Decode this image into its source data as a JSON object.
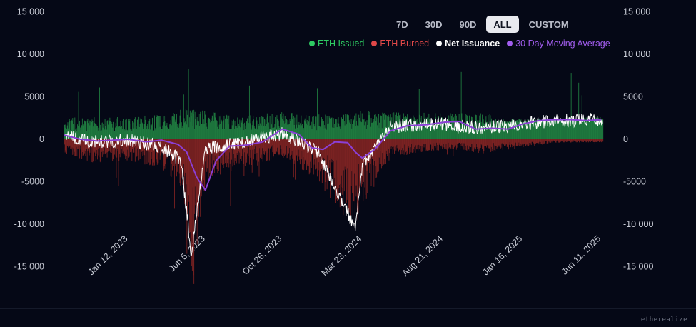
{
  "range_selector": {
    "options": [
      "7D",
      "30D",
      "90D",
      "ALL",
      "CUSTOM"
    ],
    "selected": "ALL"
  },
  "colors": {
    "background": "#050816",
    "issued": "#1f7a3f",
    "issued_legend": "#2ecc63",
    "burned": "#7a2222",
    "burned_legend": "#e04848",
    "net": "#ffffff",
    "moving_average": "#8b3fd6",
    "axis_text": "#c9ccd6"
  },
  "legend": [
    {
      "label": "ETH Issued",
      "color": "#2ecc63"
    },
    {
      "label": "ETH Burned",
      "color": "#e04848"
    },
    {
      "label": "Net Issuance",
      "color": "#ffffff"
    },
    {
      "label": "30 Day Moving Average",
      "color": "#a35ef0"
    }
  ],
  "watermark": "etherealize",
  "chart_data": {
    "type": "bar",
    "x_range": [
      "2022-09-15",
      "2025-06-15"
    ],
    "x_ticks": [
      "Jan 12, 2023",
      "Jun 5, 2023",
      "Oct 26, 2023",
      "Mar 23, 2024",
      "Aug 21, 2024",
      "Jan 16, 2025",
      "Jun 11, 2025"
    ],
    "y_ticks": [
      15000,
      10000,
      5000,
      0,
      -5000,
      -10000,
      -15000
    ],
    "y_tick_labels": [
      "15 000",
      "10 000",
      "5000",
      "0",
      "-5000",
      "-10 000",
      "-15 000"
    ],
    "ylim": [
      -15000,
      15000
    ],
    "grid": false,
    "legend_position": "top-right",
    "series": [
      {
        "name": "ETH Issued",
        "type": "bar",
        "x": [
          "2022-09-15",
          "2022-11-01",
          "2023-01-12",
          "2023-03-15",
          "2023-04-20",
          "2023-06-05",
          "2023-08-01",
          "2023-10-26",
          "2024-01-01",
          "2024-03-23",
          "2024-05-15",
          "2024-08-21",
          "2024-11-01",
          "2025-01-16",
          "2025-03-15",
          "2025-06-11"
        ],
        "values": [
          1800,
          1900,
          1900,
          2100,
          2600,
          2400,
          2000,
          2300,
          2100,
          2400,
          2300,
          2200,
          2200,
          2300,
          2400,
          2500
        ]
      },
      {
        "name": "ETH Burned",
        "type": "bar",
        "x": [
          "2022-09-15",
          "2022-11-01",
          "2023-01-12",
          "2023-03-15",
          "2023-04-20",
          "2023-05-10",
          "2023-06-05",
          "2023-08-01",
          "2023-10-26",
          "2024-01-01",
          "2024-03-10",
          "2024-03-23",
          "2024-05-15",
          "2024-08-21",
          "2024-11-01",
          "2025-01-16",
          "2025-03-15",
          "2025-06-11"
        ],
        "values": [
          -1200,
          -2000,
          -1800,
          -2500,
          -4000,
          -14500,
          -3500,
          -2500,
          -1500,
          -3500,
          -8000,
          -6000,
          -1500,
          -900,
          -1200,
          -700,
          -300,
          -250
        ]
      },
      {
        "name": "Net Issuance",
        "type": "line",
        "x": [
          "2022-09-15",
          "2022-11-01",
          "2023-01-12",
          "2023-03-15",
          "2023-04-20",
          "2023-05-10",
          "2023-06-05",
          "2023-08-01",
          "2023-10-26",
          "2024-01-01",
          "2024-03-10",
          "2024-03-23",
          "2024-05-15",
          "2024-08-21",
          "2024-11-01",
          "2025-01-16",
          "2025-03-15",
          "2025-06-11"
        ],
        "values": [
          600,
          -300,
          -100,
          -800,
          -2500,
          -13500,
          -1000,
          -500,
          700,
          -1500,
          -10500,
          -3000,
          1500,
          1800,
          1300,
          1800,
          2200,
          2300
        ]
      },
      {
        "name": "30 Day Moving Average",
        "type": "line",
        "x": [
          "2022-09-15",
          "2022-10-15",
          "2022-11-15",
          "2022-12-15",
          "2023-01-12",
          "2023-02-15",
          "2023-03-15",
          "2023-04-15",
          "2023-05-01",
          "2023-05-20",
          "2023-06-05",
          "2023-06-25",
          "2023-07-20",
          "2023-08-20",
          "2023-09-20",
          "2023-10-26",
          "2023-11-26",
          "2023-12-20",
          "2024-01-10",
          "2024-02-01",
          "2024-02-25",
          "2024-03-10",
          "2024-03-23",
          "2024-04-15",
          "2024-05-15",
          "2024-06-15",
          "2024-07-20",
          "2024-08-21",
          "2024-09-20",
          "2024-10-20",
          "2024-11-20",
          "2024-12-20",
          "2025-01-16",
          "2025-02-15",
          "2025-03-15",
          "2025-04-15",
          "2025-05-15",
          "2025-06-11"
        ],
        "values": [
          500,
          0,
          -200,
          -100,
          0,
          -300,
          -100,
          -600,
          -1500,
          -4500,
          -6000,
          -2500,
          -800,
          -700,
          -300,
          1200,
          600,
          -1000,
          -1200,
          -300,
          -400,
          -1500,
          -2200,
          -1200,
          1000,
          1600,
          1700,
          2000,
          2100,
          1200,
          1300,
          1200,
          1800,
          2200,
          2300,
          2300,
          2200,
          2300
        ]
      }
    ]
  }
}
